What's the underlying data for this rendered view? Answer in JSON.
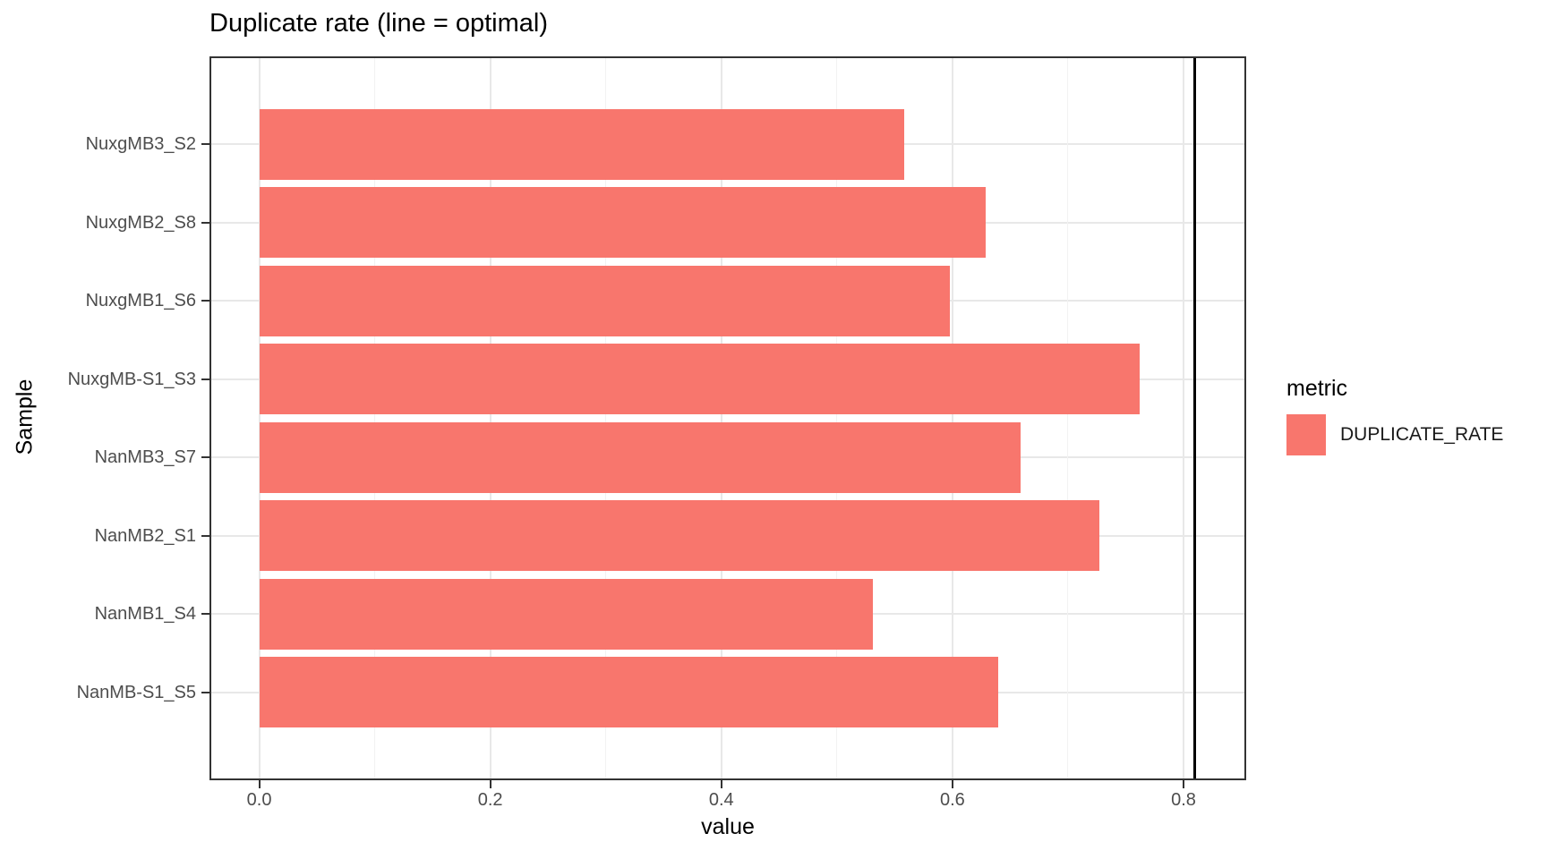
{
  "page": {
    "background": "#ffffff"
  },
  "chart": {
    "legend": {
      "title": "metric",
      "items": [
        {
          "label": "DUPLICATE_RATE",
          "color": "#F8766D"
        }
      ]
    }
  },
  "chart_data": {
    "type": "bar",
    "orientation": "horizontal",
    "title": "Duplicate rate (line = optimal)",
    "xlabel": "value",
    "ylabel": "Sample",
    "categories": [
      "NuxgMB3_S2",
      "NuxgMB2_S8",
      "NuxgMB1_S6",
      "NuxgMB-S1_S3",
      "NanMB3_S7",
      "NanMB2_S1",
      "NanMB1_S4",
      "NanMB-S1_S5"
    ],
    "series": [
      {
        "name": "DUPLICATE_RATE",
        "values": [
          0.558,
          0.629,
          0.598,
          0.762,
          0.659,
          0.727,
          0.531,
          0.64
        ]
      }
    ],
    "reference_line": {
      "value": 0.81,
      "label": "optimal",
      "color": "#000000"
    },
    "x_ticks": [
      0.0,
      0.2,
      0.4,
      0.6,
      0.8
    ],
    "x_tick_labels": [
      "0.0",
      "0.2",
      "0.4",
      "0.6",
      "0.8"
    ],
    "x_minor_ticks": [
      0.1,
      0.3,
      0.5,
      0.7
    ],
    "xlim": [
      -0.0415,
      0.8527
    ],
    "grid": true,
    "legend_position": "right",
    "bar_color": "#F8766D",
    "colors": {
      "bar": "#F8766D",
      "panel_border": "#333333",
      "grid_major": "#e8e8e8",
      "grid_minor": "#f2f2f2",
      "axis_text": "#4d4d4d",
      "title_text": "#000000",
      "reference_line": "#000000"
    }
  }
}
